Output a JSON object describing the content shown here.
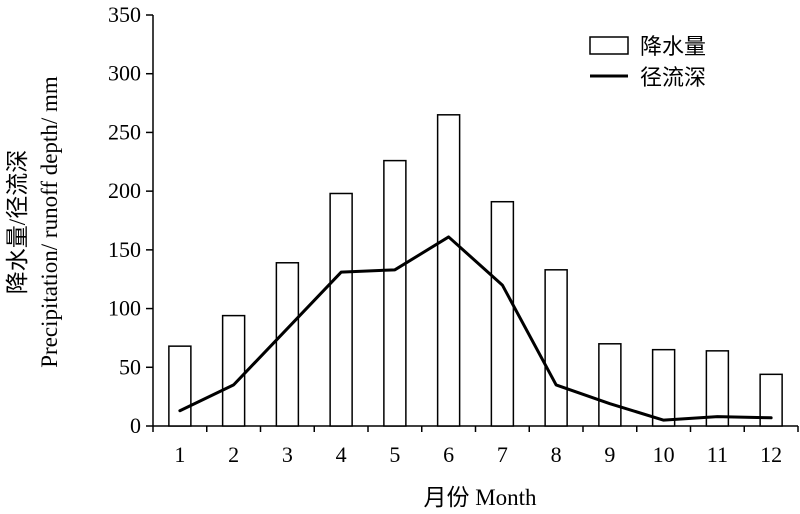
{
  "chart_data": {
    "type": "bar",
    "categories": [
      "1",
      "2",
      "3",
      "4",
      "5",
      "6",
      "7",
      "8",
      "9",
      "10",
      "11",
      "12"
    ],
    "series": [
      {
        "name": "降水量",
        "type": "bar",
        "values": [
          68,
          94,
          139,
          198,
          226,
          265,
          191,
          133,
          70,
          65,
          64,
          44
        ]
      },
      {
        "name": "径流深",
        "type": "line",
        "values": [
          13,
          35,
          83,
          131,
          133,
          161,
          120,
          35,
          19,
          5,
          8,
          7
        ]
      }
    ],
    "xlabel": "月份 Month",
    "ylabel_cn": "降水量/径流深",
    "ylabel_en": "Precipitation/ runoff depth/ mm",
    "ylim": [
      0,
      350
    ],
    "yticks": [
      0,
      50,
      100,
      150,
      200,
      250,
      300,
      350
    ],
    "grid": false,
    "legend_position": "top-right",
    "colors": {
      "bar_fill": "#ffffff",
      "bar_stroke": "#000000",
      "line": "#000000"
    }
  }
}
